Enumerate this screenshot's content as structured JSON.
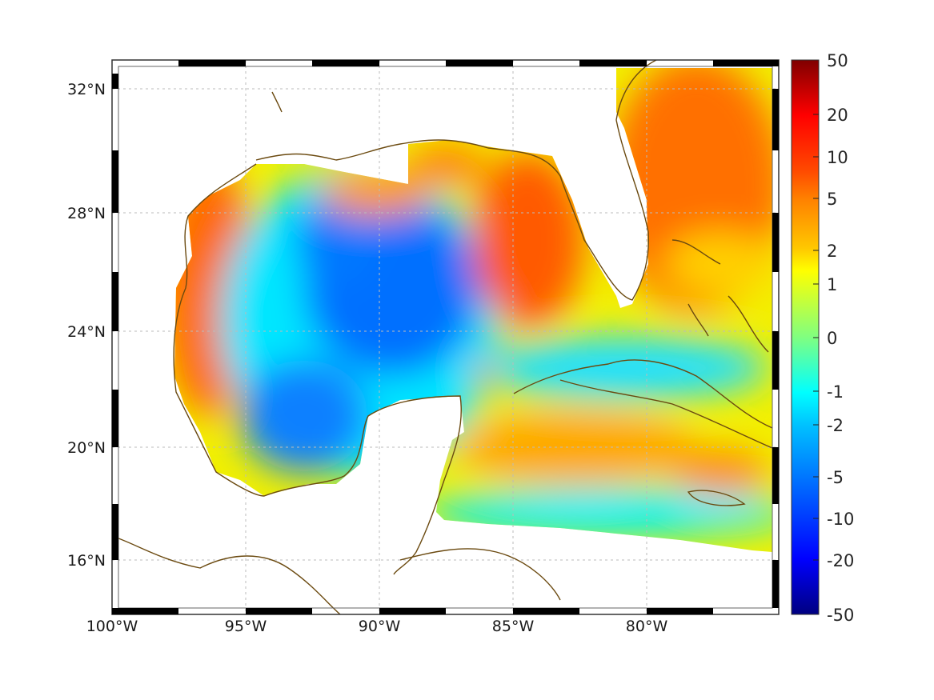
{
  "map": {
    "extent": {
      "lon": [
        -100,
        -75
      ],
      "lat": [
        14.2,
        33
      ]
    },
    "lon_ticks": [
      "100°W",
      "95°W",
      "90°W",
      "85°W",
      "80°W"
    ],
    "lat_ticks": [
      "32°N",
      "28°N",
      "24°N",
      "20°N",
      "16°N"
    ],
    "coastline_color": "#6b4a10",
    "gridlines": true
  },
  "colorbar": {
    "labels": [
      "50",
      "20",
      "10",
      "5",
      "2",
      "1",
      "0",
      "-1",
      "-2",
      "-5",
      "-10",
      "-20",
      "-50"
    ],
    "colormap": "jet",
    "scale": "symmetric-log"
  }
}
